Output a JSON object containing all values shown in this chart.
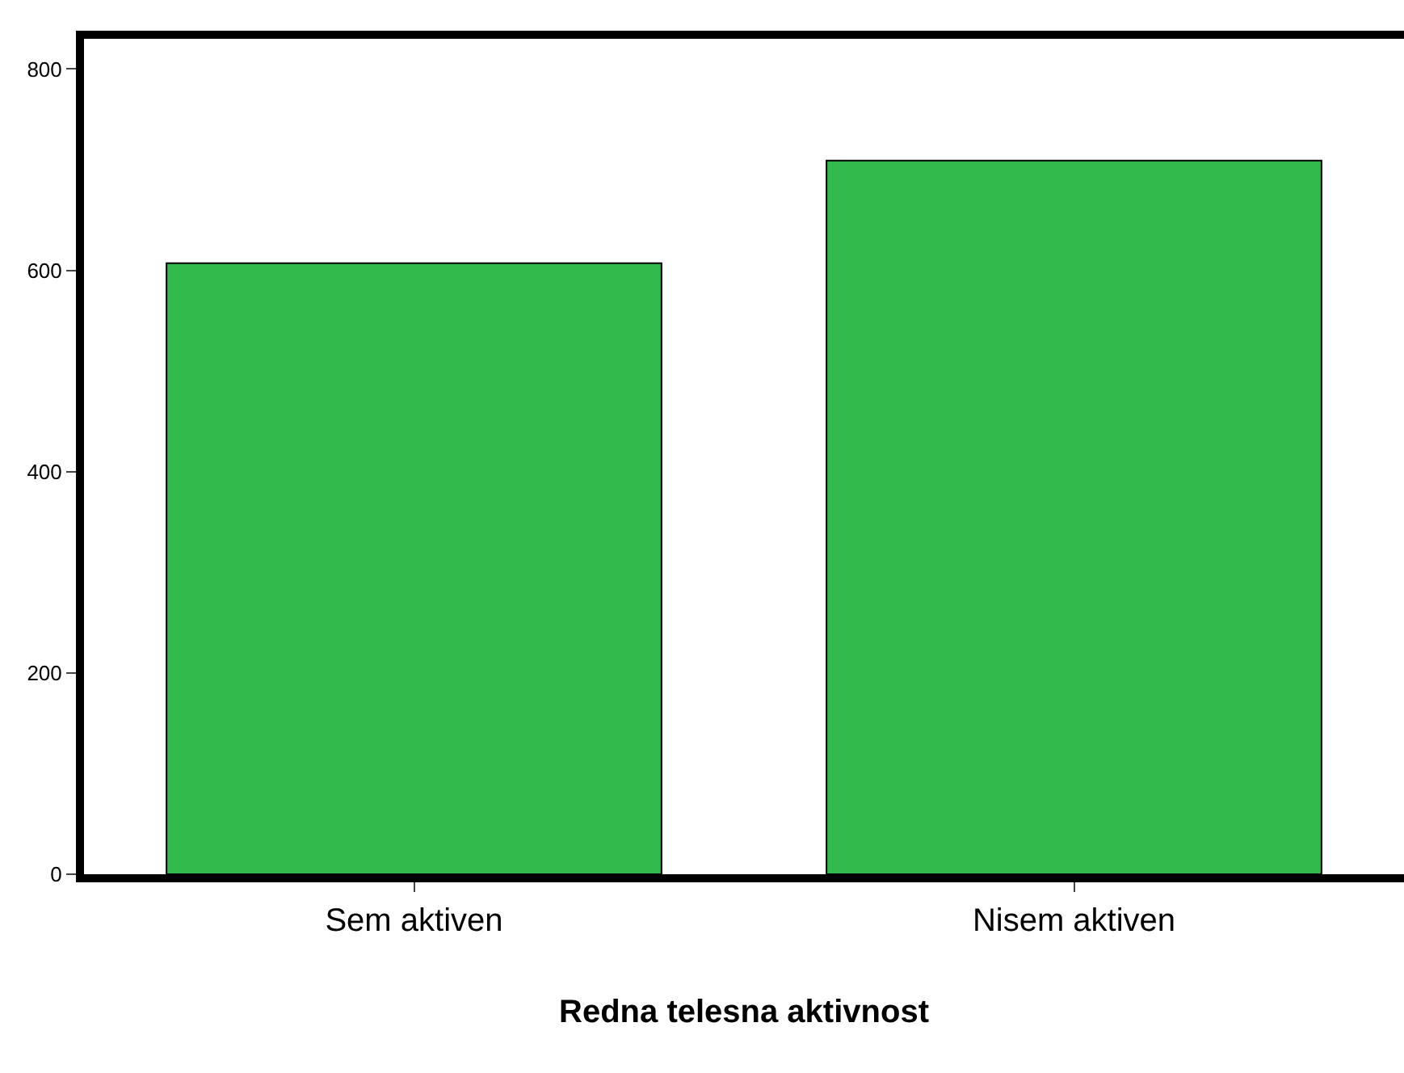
{
  "chart_data": {
    "type": "bar",
    "xlabel": "Redna telesna aktivnost",
    "categories": [
      "Sem aktiven",
      "Nisem aktiven"
    ],
    "values": [
      607,
      709
    ],
    "color": "#31b94b",
    "ylim": [
      0,
      830
    ],
    "yticks": [
      0,
      200,
      400,
      600,
      800
    ]
  }
}
